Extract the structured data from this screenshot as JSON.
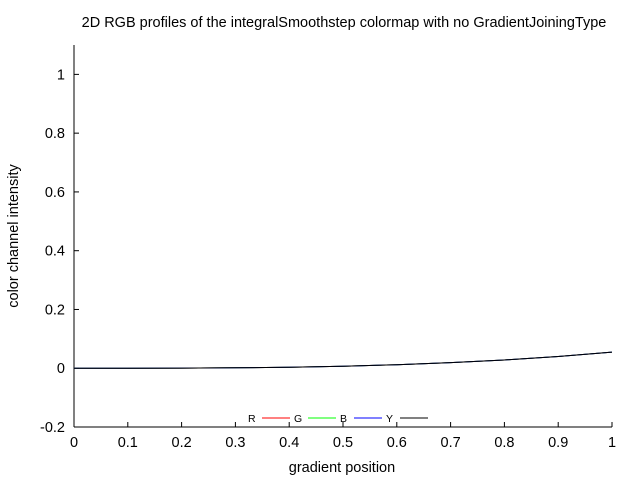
{
  "chart_data": {
    "type": "line",
    "title": "2D RGB profiles of the integralSmoothstep colormap with no GradientJoiningType",
    "xlabel": "gradient position",
    "ylabel": "color channel intensity",
    "xlim": [
      0,
      1
    ],
    "ylim": [
      -0.2,
      1.1
    ],
    "xticks": [
      "0",
      "0.1",
      "0.2",
      "0.3",
      "0.4",
      "0.5",
      "0.6",
      "0.7",
      "0.8",
      "0.9",
      "1"
    ],
    "yticks": [
      "-0.2",
      "0",
      "0.2",
      "0.4",
      "0.6",
      "0.8",
      "1"
    ],
    "grid": false,
    "legend_position": "bottom-center",
    "x": [
      0,
      0.1,
      0.2,
      0.3,
      0.4,
      0.5,
      0.6,
      0.7,
      0.8,
      0.9,
      1.0
    ],
    "series": [
      {
        "name": "R",
        "color": "#ff0000",
        "values": [
          0,
          5.5e-05,
          0.00044,
          0.0015,
          0.0035,
          0.0069,
          0.0119,
          0.0189,
          0.0282,
          0.0401,
          0.055
        ]
      },
      {
        "name": "G",
        "color": "#00ff00",
        "values": [
          0,
          5.5e-05,
          0.00044,
          0.0015,
          0.0035,
          0.0069,
          0.0119,
          0.0189,
          0.0282,
          0.0401,
          0.055
        ]
      },
      {
        "name": "B",
        "color": "#0000ff",
        "values": [
          0,
          5.5e-05,
          0.00044,
          0.0015,
          0.0035,
          0.0069,
          0.0119,
          0.0189,
          0.0282,
          0.0401,
          0.055
        ]
      },
      {
        "name": "Y",
        "color": "#000000",
        "values": [
          0,
          5.5e-05,
          0.00044,
          0.0015,
          0.0035,
          0.0069,
          0.0119,
          0.0189,
          0.0282,
          0.0401,
          0.055
        ]
      }
    ]
  }
}
